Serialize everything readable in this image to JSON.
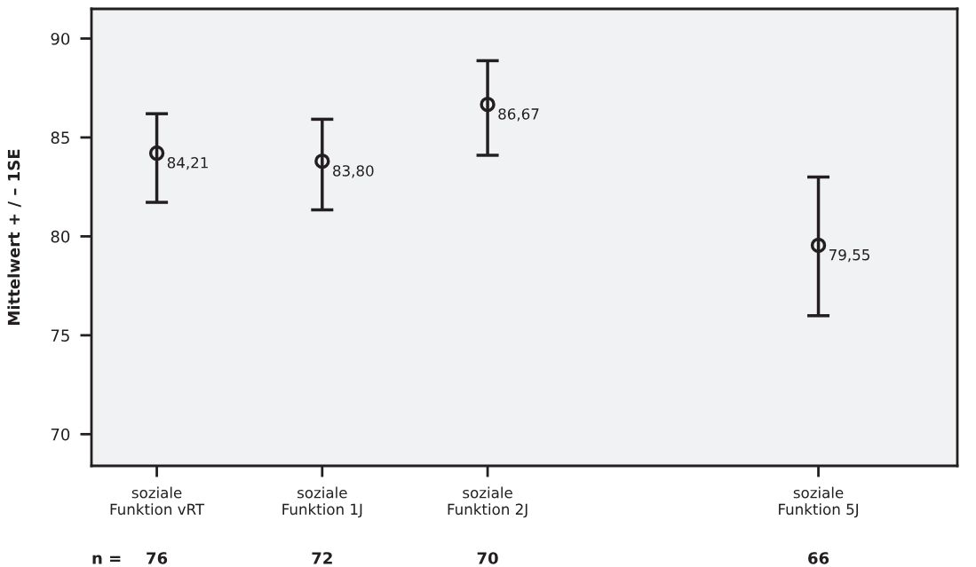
{
  "chart_data": {
    "type": "scatter",
    "ylabel": "Mittelwert + / – 1SE",
    "categories": [
      "soziale\nFunktion vRT",
      "soziale\nFunktion 1J",
      "soziale\nFunktion 2J",
      null,
      "soziale\nFunktion 5J"
    ],
    "values": [
      84.21,
      83.8,
      86.67,
      null,
      79.55
    ],
    "value_labels": [
      "84,21",
      "83,80",
      "86,67",
      null,
      "79,55"
    ],
    "errors": [
      [
        81.72,
        86.2
      ],
      [
        81.34,
        85.92
      ],
      [
        84.1,
        88.88
      ],
      null,
      [
        75.99,
        83.0
      ]
    ],
    "color": "#231f20",
    "marker": "circle",
    "ylim": [
      68.4,
      91.5
    ],
    "yticks": [
      70,
      75,
      80,
      85,
      90
    ],
    "grid": false,
    "legend": false,
    "annotations": [
      "n =",
      "76",
      "72",
      "70",
      "66"
    ]
  }
}
